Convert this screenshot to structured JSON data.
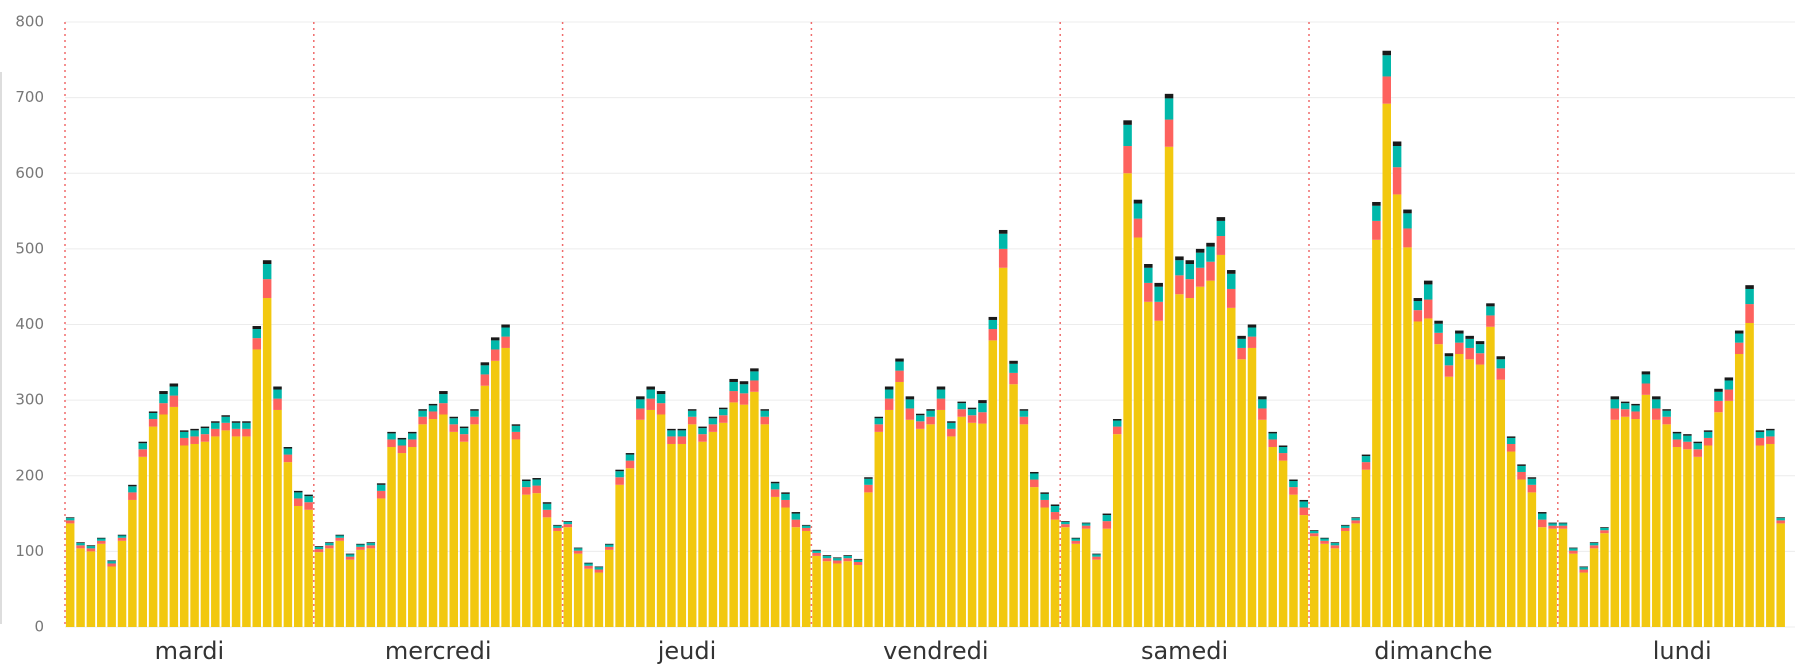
{
  "chart_data": {
    "type": "stacked-bar",
    "groups": [
      "mardi",
      "mercredi",
      "jeudi",
      "vendredi",
      "samedi",
      "dimanche",
      "lundi"
    ],
    "ylim": [
      0,
      800
    ],
    "yticks": [
      0,
      100,
      200,
      300,
      400,
      500,
      600,
      700,
      800
    ],
    "grid": true,
    "series": [
      {
        "color": "#f2c80f",
        "values": [
          137,
          104,
          100,
          110,
          80,
          114,
          168,
          225,
          265,
          281,
          291,
          240,
          242,
          245,
          252,
          260,
          252,
          252,
          367,
          435,
          287,
          218,
          160,
          155,
          99,
          104,
          114,
          89,
          102,
          104,
          170,
          238,
          230,
          238,
          268,
          275,
          281,
          258,
          245,
          268,
          319,
          352,
          369,
          248,
          175,
          177,
          145,
          127,
          132,
          97,
          77,
          72,
          102,
          188,
          210,
          274,
          287,
          281,
          242,
          242,
          268,
          245,
          258,
          270,
          297,
          294,
          311,
          268,
          172,
          158,
          132,
          127,
          94,
          87,
          84,
          87,
          82,
          178,
          258,
          287,
          324,
          274,
          262,
          268,
          287,
          252,
          278,
          270,
          269,
          379,
          475,
          321,
          268,
          185,
          158,
          142,
          132,
          110,
          130,
          89,
          130,
          255,
          600,
          515,
          430,
          405,
          635,
          440,
          435,
          450,
          458,
          492,
          422,
          354,
          369,
          274,
          238,
          220,
          175,
          148,
          120,
          110,
          104,
          127,
          137,
          208,
          512,
          692,
          572,
          502,
          404,
          408,
          374,
          331,
          361,
          354,
          347,
          397,
          327,
          232,
          195,
          178,
          132,
          130,
          130,
          97,
          72,
          104,
          124,
          274,
          278,
          275,
          307,
          274,
          268,
          238,
          235,
          225,
          240,
          284,
          299,
          361,
          402,
          240,
          242,
          137
        ]
      },
      {
        "color": "#fd625e",
        "values": [
          4,
          4,
          4,
          4,
          4,
          4,
          10,
          10,
          10,
          15,
          15,
          10,
          10,
          10,
          10,
          10,
          10,
          10,
          15,
          25,
          15,
          10,
          10,
          10,
          4,
          4,
          4,
          4,
          4,
          4,
          10,
          10,
          10,
          10,
          10,
          10,
          15,
          10,
          10,
          10,
          15,
          15,
          15,
          10,
          10,
          10,
          10,
          4,
          4,
          4,
          4,
          4,
          4,
          10,
          10,
          15,
          15,
          15,
          10,
          10,
          10,
          10,
          10,
          10,
          15,
          15,
          15,
          10,
          10,
          10,
          10,
          4,
          4,
          4,
          4,
          4,
          4,
          10,
          10,
          15,
          15,
          15,
          10,
          10,
          15,
          10,
          10,
          10,
          15,
          15,
          25,
          15,
          10,
          10,
          10,
          10,
          4,
          4,
          4,
          4,
          10,
          10,
          36,
          25,
          25,
          25,
          36,
          25,
          25,
          25,
          25,
          25,
          25,
          15,
          15,
          15,
          10,
          10,
          10,
          10,
          4,
          4,
          4,
          4,
          4,
          10,
          25,
          36,
          36,
          25,
          15,
          25,
          15,
          15,
          15,
          15,
          15,
          15,
          15,
          10,
          10,
          10,
          10,
          4,
          4,
          4,
          4,
          4,
          4,
          15,
          10,
          10,
          15,
          15,
          10,
          10,
          10,
          10,
          10,
          15,
          15,
          15,
          25,
          10,
          10,
          4
        ]
      },
      {
        "color": "#01b8aa",
        "values": [
          3,
          3,
          3,
          3,
          3,
          3,
          8,
          8,
          8,
          12,
          12,
          8,
          8,
          8,
          8,
          8,
          8,
          8,
          12,
          20,
          12,
          8,
          8,
          8,
          3,
          3,
          3,
          3,
          3,
          3,
          8,
          8,
          8,
          8,
          8,
          8,
          12,
          8,
          8,
          8,
          12,
          12,
          12,
          8,
          8,
          8,
          8,
          3,
          3,
          3,
          3,
          3,
          3,
          8,
          8,
          12,
          12,
          12,
          8,
          8,
          8,
          8,
          8,
          8,
          12,
          12,
          12,
          8,
          8,
          8,
          8,
          3,
          3,
          3,
          3,
          3,
          3,
          8,
          8,
          12,
          12,
          12,
          8,
          8,
          12,
          8,
          8,
          8,
          12,
          12,
          20,
          12,
          8,
          8,
          8,
          8,
          3,
          3,
          3,
          3,
          8,
          8,
          28,
          20,
          20,
          20,
          28,
          20,
          20,
          20,
          20,
          20,
          20,
          12,
          12,
          12,
          8,
          8,
          8,
          8,
          3,
          3,
          3,
          3,
          3,
          8,
          20,
          28,
          28,
          20,
          12,
          20,
          12,
          12,
          12,
          12,
          12,
          12,
          12,
          8,
          8,
          8,
          8,
          3,
          3,
          3,
          3,
          3,
          3,
          12,
          8,
          8,
          12,
          12,
          8,
          8,
          8,
          8,
          8,
          12,
          12,
          12,
          20,
          8,
          8,
          3
        ]
      },
      {
        "color": "#1a1a1a",
        "values": [
          1,
          1,
          1,
          1,
          1,
          1,
          2,
          2,
          2,
          4,
          4,
          2,
          2,
          2,
          2,
          2,
          2,
          2,
          4,
          5,
          4,
          2,
          2,
          2,
          1,
          1,
          1,
          1,
          1,
          1,
          2,
          2,
          2,
          2,
          2,
          2,
          4,
          2,
          2,
          2,
          4,
          4,
          4,
          2,
          2,
          2,
          2,
          1,
          1,
          1,
          1,
          1,
          1,
          2,
          2,
          4,
          4,
          4,
          2,
          2,
          2,
          2,
          2,
          2,
          4,
          4,
          4,
          2,
          2,
          2,
          2,
          1,
          1,
          1,
          1,
          1,
          1,
          2,
          2,
          4,
          4,
          4,
          2,
          2,
          4,
          2,
          2,
          2,
          4,
          4,
          5,
          4,
          2,
          2,
          2,
          2,
          1,
          1,
          1,
          1,
          2,
          2,
          6,
          5,
          5,
          5,
          6,
          5,
          5,
          5,
          5,
          5,
          5,
          4,
          4,
          4,
          2,
          2,
          2,
          2,
          1,
          1,
          1,
          1,
          1,
          2,
          5,
          6,
          6,
          5,
          4,
          5,
          4,
          4,
          4,
          4,
          4,
          4,
          4,
          2,
          2,
          2,
          2,
          1,
          1,
          1,
          1,
          1,
          1,
          4,
          2,
          2,
          4,
          4,
          2,
          2,
          2,
          2,
          2,
          4,
          4,
          4,
          5,
          2,
          2,
          1
        ]
      }
    ]
  }
}
